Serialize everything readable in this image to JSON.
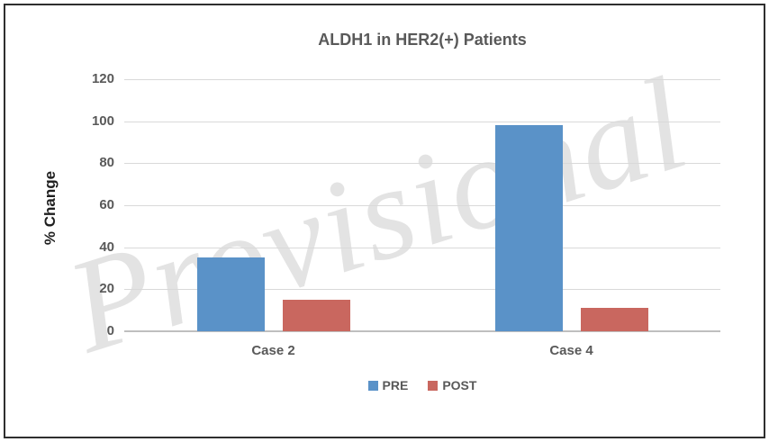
{
  "window": {
    "border_color": "#2f2f2f",
    "background_color": "#ffffff"
  },
  "watermark": {
    "text": "Provisional",
    "color": "#e3e3e3"
  },
  "chart_data": {
    "type": "bar",
    "title": "ALDH1 in HER2(+) Patients",
    "title_color": "#595959",
    "categories": [
      "Case 2",
      "Case 4"
    ],
    "series": [
      {
        "name": "PRE",
        "color": "#5a92c8",
        "values": [
          35,
          98
        ]
      },
      {
        "name": "POST",
        "color": "#c9675f",
        "values": [
          15,
          11
        ]
      }
    ],
    "xlabel": "",
    "ylabel": "% Change",
    "ylim": [
      0,
      120
    ],
    "yticks": [
      0,
      20,
      40,
      60,
      80,
      100,
      120
    ],
    "grid": true,
    "gridline_color": "#d9d9d9",
    "axis_line_color": "#bfbfbf",
    "tick_label_color": "#595959",
    "legend_position": "bottom"
  }
}
